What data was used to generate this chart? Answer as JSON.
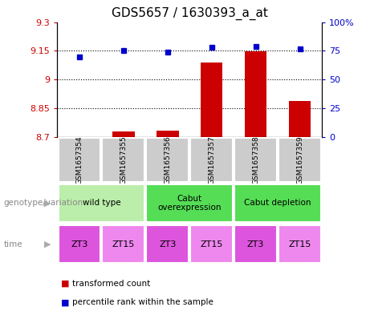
{
  "title": "GDS5657 / 1630393_a_at",
  "samples": [
    "GSM1657354",
    "GSM1657355",
    "GSM1657356",
    "GSM1657357",
    "GSM1657358",
    "GSM1657359"
  ],
  "transformed_count": [
    8.701,
    8.73,
    8.735,
    9.09,
    9.148,
    8.89
  ],
  "percentile_rank": [
    70,
    75,
    74,
    78,
    79,
    77
  ],
  "ylim_left": [
    8.7,
    9.3
  ],
  "ylim_right": [
    0,
    100
  ],
  "yticks_left": [
    8.7,
    8.85,
    9.0,
    9.15,
    9.3
  ],
  "yticks_right": [
    0,
    25,
    50,
    75,
    100
  ],
  "ytick_labels_left": [
    "8.7",
    "8.85",
    "9",
    "9.15",
    "9.3"
  ],
  "ytick_labels_right": [
    "0",
    "25",
    "50",
    "75",
    "100%"
  ],
  "hlines": [
    8.85,
    9.0,
    9.15
  ],
  "bar_color": "#cc0000",
  "dot_color": "#0000cc",
  "bar_width": 0.5,
  "geno_groups": [
    {
      "label": "wild type",
      "start": 0,
      "end": 2,
      "color": "#bbeeaa"
    },
    {
      "label": "Cabut\noverexpression",
      "start": 2,
      "end": 4,
      "color": "#55dd55"
    },
    {
      "label": "Cabut depletion",
      "start": 4,
      "end": 6,
      "color": "#55dd55"
    }
  ],
  "time_labels": [
    "ZT3",
    "ZT15",
    "ZT3",
    "ZT15",
    "ZT3",
    "ZT15"
  ],
  "time_colors": [
    "#dd55dd",
    "#ee88ee",
    "#dd55dd",
    "#ee88ee",
    "#dd55dd",
    "#ee88ee"
  ],
  "sample_box_color": "#cccccc",
  "genotype_label": "genotype/variation",
  "time_label": "time",
  "legend_bar_label": "transformed count",
  "legend_dot_label": "percentile rank within the sample",
  "title_fontsize": 11,
  "tick_fontsize": 8,
  "label_fontsize": 8,
  "annot_fontsize": 7.5
}
